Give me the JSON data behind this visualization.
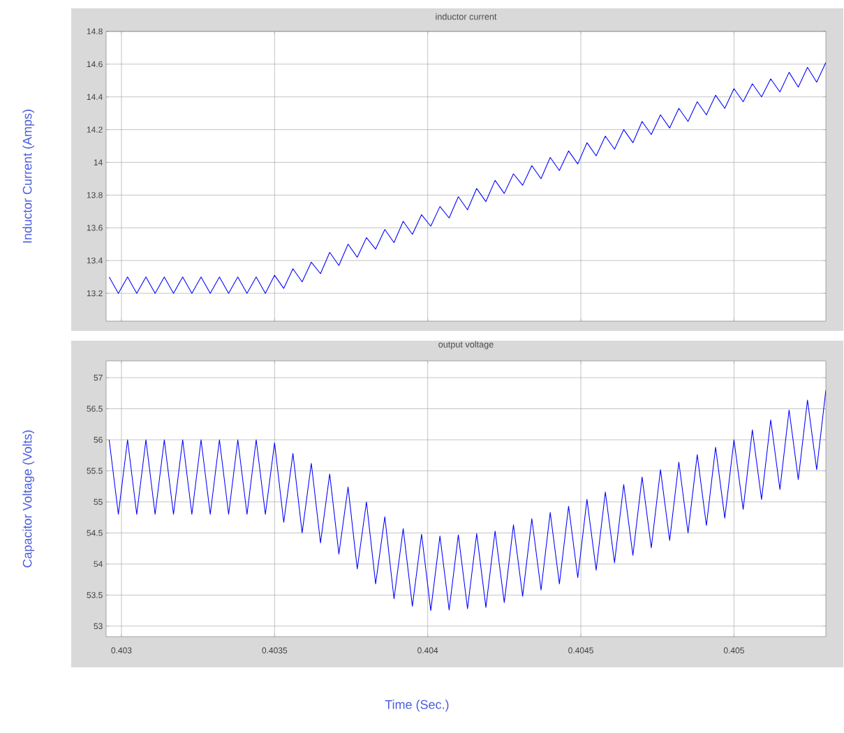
{
  "chart_data": [
    {
      "type": "line",
      "title": "inductor current",
      "ylabel": "Inductor Current (Amps)",
      "x": [
        0.40296,
        0.40299,
        0.40302,
        0.40305,
        0.40308,
        0.40311,
        0.40314,
        0.40317,
        0.4032,
        0.40323,
        0.40326,
        0.40329,
        0.40332,
        0.40335,
        0.40338,
        0.40341,
        0.40344,
        0.40347,
        0.4035,
        0.40353,
        0.40356,
        0.40359,
        0.40362,
        0.40365,
        0.40368,
        0.40371,
        0.40374,
        0.40377,
        0.4038,
        0.40383,
        0.40386,
        0.40389,
        0.40392,
        0.40395,
        0.40398,
        0.40401,
        0.40404,
        0.40407,
        0.4041,
        0.40413,
        0.40416,
        0.40419,
        0.40422,
        0.40425,
        0.40428,
        0.40431,
        0.40434,
        0.40437,
        0.4044,
        0.40443,
        0.40446,
        0.40449,
        0.40452,
        0.40455,
        0.40458,
        0.40461,
        0.40464,
        0.40467,
        0.4047,
        0.40473,
        0.40476,
        0.40479,
        0.40482,
        0.40485,
        0.40488,
        0.40491,
        0.40494,
        0.40497,
        0.405,
        0.40503,
        0.40506,
        0.40509,
        0.40512,
        0.40515,
        0.40518,
        0.40521,
        0.40524,
        0.40527,
        0.4053
      ],
      "series": [
        {
          "color": "#0000ff",
          "values": [
            13.3,
            13.2,
            13.3,
            13.2,
            13.3,
            13.2,
            13.3,
            13.2,
            13.3,
            13.2,
            13.3,
            13.2,
            13.3,
            13.2,
            13.3,
            13.2,
            13.3,
            13.2,
            13.31,
            13.23,
            13.35,
            13.27,
            13.39,
            13.32,
            13.45,
            13.37,
            13.5,
            13.42,
            13.54,
            13.47,
            13.59,
            13.51,
            13.64,
            13.56,
            13.68,
            13.61,
            13.73,
            13.66,
            13.79,
            13.71,
            13.84,
            13.76,
            13.89,
            13.81,
            13.93,
            13.86,
            13.98,
            13.9,
            14.03,
            13.95,
            14.07,
            13.99,
            14.12,
            14.04,
            14.16,
            14.08,
            14.2,
            14.12,
            14.25,
            14.17,
            14.29,
            14.21,
            14.33,
            14.25,
            14.37,
            14.29,
            14.41,
            14.33,
            14.45,
            14.37,
            14.48,
            14.4,
            14.51,
            14.43,
            14.55,
            14.46,
            14.58,
            14.49,
            14.61
          ]
        }
      ],
      "xlim": [
        0.40295,
        0.4053
      ],
      "ylim": [
        13.03,
        14.8
      ],
      "xticks": [
        0.403,
        0.4035,
        0.404,
        0.4045,
        0.405
      ],
      "yticks": [
        13.2,
        13.4,
        13.6,
        13.8,
        14,
        14.2,
        14.4,
        14.6,
        14.8
      ],
      "grid": true,
      "tick_labels": "y"
    },
    {
      "type": "line",
      "title": "output voltage",
      "ylabel": "Capacitor Voltage (Volts)",
      "xlabel": "Time (Sec.)",
      "x": [
        0.40296,
        0.40299,
        0.40302,
        0.40305,
        0.40308,
        0.40311,
        0.40314,
        0.40317,
        0.4032,
        0.40323,
        0.40326,
        0.40329,
        0.40332,
        0.40335,
        0.40338,
        0.40341,
        0.40344,
        0.40347,
        0.4035,
        0.40353,
        0.40356,
        0.40359,
        0.40362,
        0.40365,
        0.40368,
        0.40371,
        0.40374,
        0.40377,
        0.4038,
        0.40383,
        0.40386,
        0.40389,
        0.40392,
        0.40395,
        0.40398,
        0.40401,
        0.40404,
        0.40407,
        0.4041,
        0.40413,
        0.40416,
        0.40419,
        0.40422,
        0.40425,
        0.40428,
        0.40431,
        0.40434,
        0.40437,
        0.4044,
        0.40443,
        0.40446,
        0.40449,
        0.40452,
        0.40455,
        0.40458,
        0.40461,
        0.40464,
        0.40467,
        0.4047,
        0.40473,
        0.40476,
        0.40479,
        0.40482,
        0.40485,
        0.40488,
        0.40491,
        0.40494,
        0.40497,
        0.405,
        0.40503,
        0.40506,
        0.40509,
        0.40512,
        0.40515,
        0.40518,
        0.40521,
        0.40524,
        0.40527,
        0.4053
      ],
      "series": [
        {
          "color": "#0000ff",
          "values": [
            56.0,
            54.8,
            56.0,
            54.8,
            56.0,
            54.8,
            56.0,
            54.8,
            56.0,
            54.8,
            56.0,
            54.8,
            56.0,
            54.8,
            56.0,
            54.8,
            56.0,
            54.8,
            55.95,
            54.67,
            55.78,
            54.5,
            55.62,
            54.34,
            55.45,
            54.16,
            55.24,
            53.92,
            55.0,
            53.68,
            54.76,
            53.44,
            54.57,
            53.32,
            54.48,
            53.25,
            54.45,
            53.26,
            54.47,
            53.28,
            54.49,
            53.3,
            54.53,
            53.38,
            54.63,
            53.48,
            54.73,
            53.58,
            54.83,
            53.68,
            54.93,
            53.78,
            55.04,
            53.9,
            55.16,
            54.02,
            55.28,
            54.14,
            55.4,
            54.26,
            55.52,
            54.38,
            55.64,
            54.5,
            55.76,
            54.62,
            55.88,
            54.74,
            56.0,
            54.88,
            56.16,
            55.04,
            56.32,
            55.2,
            56.48,
            55.36,
            56.64,
            55.52,
            56.8
          ]
        }
      ],
      "xlim": [
        0.40295,
        0.4053
      ],
      "ylim": [
        52.83,
        57.27
      ],
      "xticks": [
        0.403,
        0.4035,
        0.404,
        0.4045,
        0.405
      ],
      "yticks": [
        53,
        53.5,
        54,
        54.5,
        55,
        55.5,
        56,
        56.5,
        57
      ],
      "grid": true
    }
  ]
}
